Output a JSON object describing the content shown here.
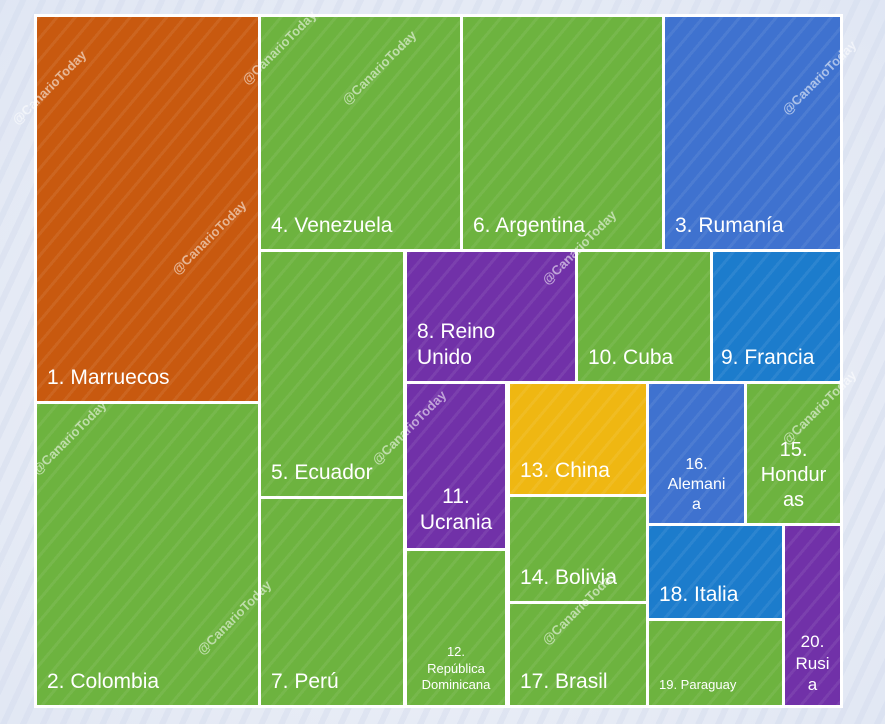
{
  "watermark": "@CanarioToday",
  "chart_data": {
    "type": "treemap",
    "items": [
      {
        "rank": 1,
        "label": "1. Marruecos",
        "color": "#c8590f"
      },
      {
        "rank": 2,
        "label": "2. Colombia",
        "color": "#6db33f"
      },
      {
        "rank": 3,
        "label": "3. Rumanía",
        "color": "#3f72cf"
      },
      {
        "rank": 4,
        "label": "4. Venezuela",
        "color": "#6db33f"
      },
      {
        "rank": 5,
        "label": "5. Ecuador",
        "color": "#6db33f"
      },
      {
        "rank": 6,
        "label": "6. Argentina",
        "color": "#6db33f"
      },
      {
        "rank": 7,
        "label": "7. Perú",
        "color": "#6db33f"
      },
      {
        "rank": 8,
        "label": "8. Reino Unido",
        "color": "#7131a8"
      },
      {
        "rank": 9,
        "label": "9. Francia",
        "color": "#1c7ccc"
      },
      {
        "rank": 10,
        "label": "10. Cuba",
        "color": "#6db33f"
      },
      {
        "rank": 11,
        "label": "11. Ucrania",
        "color": "#7131a8"
      },
      {
        "rank": 12,
        "label": "12. República Dominicana",
        "color": "#6db33f"
      },
      {
        "rank": 13,
        "label": "13. China",
        "color": "#efb712"
      },
      {
        "rank": 14,
        "label": "14. Bolivia",
        "color": "#6db33f"
      },
      {
        "rank": 15,
        "label": "15. Honduras",
        "color": "#6db33f"
      },
      {
        "rank": 16,
        "label": "16. Alemania",
        "color": "#3f72cf"
      },
      {
        "rank": 17,
        "label": "17. Brasil",
        "color": "#6db33f"
      },
      {
        "rank": 18,
        "label": "18. Italia",
        "color": "#1c7ccc"
      },
      {
        "rank": 19,
        "label": "19. Paraguay",
        "color": "#6db33f"
      },
      {
        "rank": 20,
        "label": "20. Rusia",
        "color": "#7131a8"
      }
    ]
  }
}
